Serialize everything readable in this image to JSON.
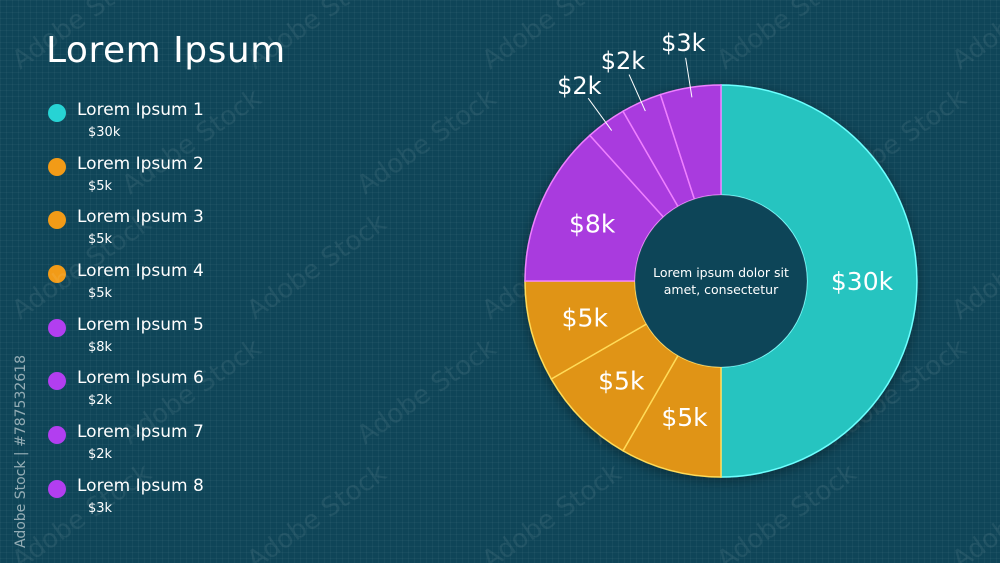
{
  "title": "Lorem Ipsum",
  "center_text": "Lorem ipsum dolor sit amet, consectetur",
  "watermark_text": "Adobe Stock",
  "stock_id": "Adobe Stock | #787532618",
  "colors": {
    "background": "#0f4558",
    "teal": "#27c4c0",
    "orange": "#e99a14",
    "purple": "#a93ade",
    "center": "#0f4558"
  },
  "legend": [
    {
      "label": "Lorem Ipsum 1",
      "value": "$30k",
      "color": "#27d3d4"
    },
    {
      "label": "Lorem Ipsum 2",
      "value": "$5k",
      "color": "#f29b17"
    },
    {
      "label": "Lorem Ipsum 3",
      "value": "$5k",
      "color": "#f29b17"
    },
    {
      "label": "Lorem Ipsum 4",
      "value": "$5k",
      "color": "#f29b17"
    },
    {
      "label": "Lorem Ipsum 5",
      "value": "$8k",
      "color": "#b23ef0"
    },
    {
      "label": "Lorem Ipsum 6",
      "value": "$2k",
      "color": "#b23ef0"
    },
    {
      "label": "Lorem Ipsum 7",
      "value": "$2k",
      "color": "#b23ef0"
    },
    {
      "label": "Lorem Ipsum 8",
      "value": "$3k",
      "color": "#b23ef0"
    }
  ],
  "chart_data": {
    "type": "pie",
    "subtype": "donut",
    "title": "Lorem Ipsum",
    "unit": "$k",
    "categories": [
      "Lorem Ipsum 1",
      "Lorem Ipsum 2",
      "Lorem Ipsum 3",
      "Lorem Ipsum 4",
      "Lorem Ipsum 5",
      "Lorem Ipsum 6",
      "Lorem Ipsum 7",
      "Lorem Ipsum 8"
    ],
    "values": [
      30,
      5,
      5,
      5,
      8,
      2,
      2,
      3
    ],
    "labels": [
      "$30k",
      "$5k",
      "$5k",
      "$5k",
      "$8k",
      "$2k",
      "$2k",
      "$3k"
    ],
    "colors": [
      "#27c4c0",
      "#e09412",
      "#e09412",
      "#e09412",
      "#a93ade",
      "#a93ade",
      "#a93ade",
      "#a93ade"
    ],
    "legend_position": "left",
    "start": "top",
    "direction": "clockwise"
  }
}
